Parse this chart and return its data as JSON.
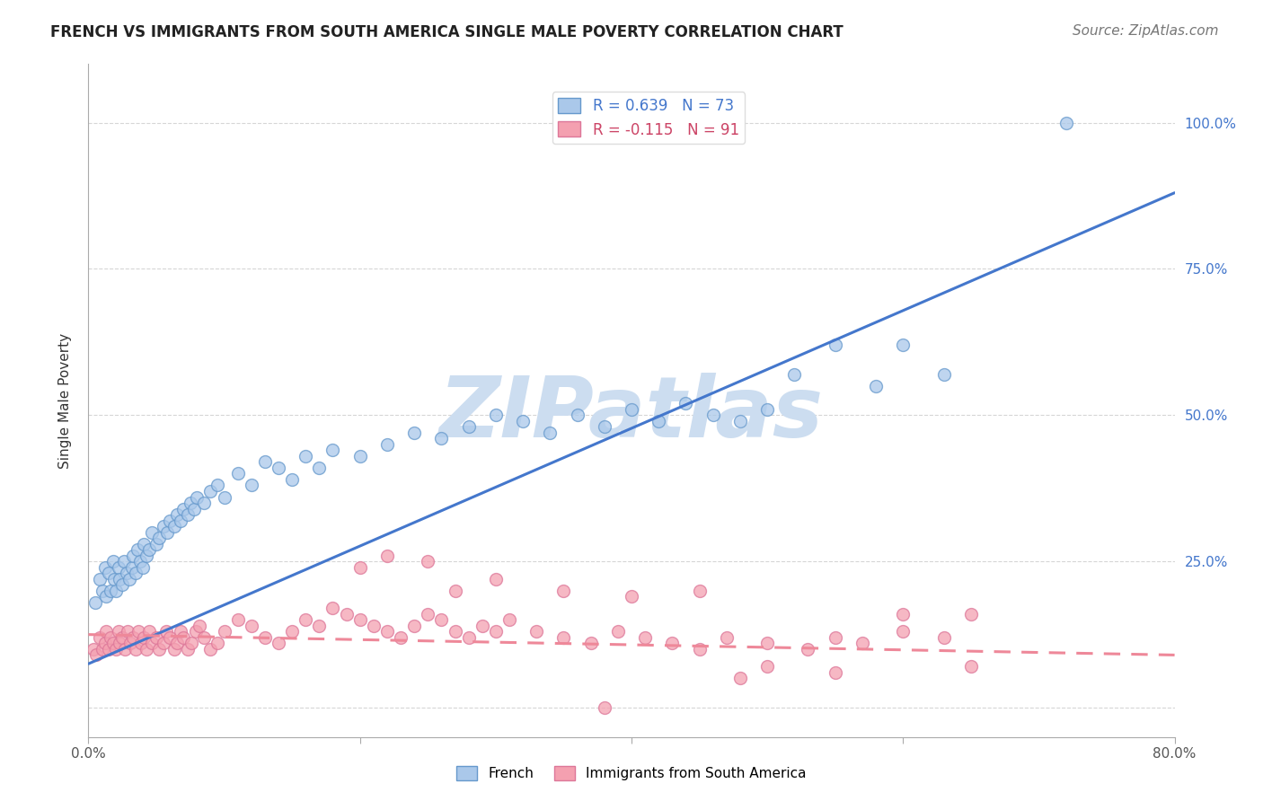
{
  "title": "FRENCH VS IMMIGRANTS FROM SOUTH AMERICA SINGLE MALE POVERTY CORRELATION CHART",
  "source": "Source: ZipAtlas.com",
  "ylabel": "Single Male Poverty",
  "xlim": [
    0.0,
    0.8
  ],
  "ylim": [
    -0.05,
    1.1
  ],
  "grid_color": "#cccccc",
  "background_color": "#ffffff",
  "watermark": "ZIPatlas",
  "watermark_color": "#ccddf0",
  "legend1_label": "R = 0.639   N = 73",
  "legend2_label": "R = -0.115   N = 91",
  "french_color": "#aac8ea",
  "immig_color": "#f4a0b0",
  "french_edge_color": "#6699cc",
  "immig_edge_color": "#dd7799",
  "french_line_color": "#4477cc",
  "immig_line_color": "#ee8899",
  "french_scatter_x": [
    0.005,
    0.008,
    0.01,
    0.012,
    0.013,
    0.015,
    0.016,
    0.018,
    0.019,
    0.02,
    0.022,
    0.023,
    0.025,
    0.026,
    0.028,
    0.03,
    0.032,
    0.033,
    0.035,
    0.036,
    0.038,
    0.04,
    0.041,
    0.043,
    0.045,
    0.047,
    0.05,
    0.052,
    0.055,
    0.058,
    0.06,
    0.063,
    0.065,
    0.068,
    0.07,
    0.073,
    0.075,
    0.078,
    0.08,
    0.085,
    0.09,
    0.095,
    0.1,
    0.11,
    0.12,
    0.13,
    0.14,
    0.15,
    0.16,
    0.17,
    0.18,
    0.2,
    0.22,
    0.24,
    0.26,
    0.28,
    0.3,
    0.32,
    0.34,
    0.36,
    0.38,
    0.4,
    0.42,
    0.44,
    0.46,
    0.48,
    0.5,
    0.52,
    0.55,
    0.58,
    0.6,
    0.63,
    0.72
  ],
  "french_scatter_y": [
    0.18,
    0.22,
    0.2,
    0.24,
    0.19,
    0.23,
    0.2,
    0.25,
    0.22,
    0.2,
    0.24,
    0.22,
    0.21,
    0.25,
    0.23,
    0.22,
    0.24,
    0.26,
    0.23,
    0.27,
    0.25,
    0.24,
    0.28,
    0.26,
    0.27,
    0.3,
    0.28,
    0.29,
    0.31,
    0.3,
    0.32,
    0.31,
    0.33,
    0.32,
    0.34,
    0.33,
    0.35,
    0.34,
    0.36,
    0.35,
    0.37,
    0.38,
    0.36,
    0.4,
    0.38,
    0.42,
    0.41,
    0.39,
    0.43,
    0.41,
    0.44,
    0.43,
    0.45,
    0.47,
    0.46,
    0.48,
    0.5,
    0.49,
    0.47,
    0.5,
    0.48,
    0.51,
    0.49,
    0.52,
    0.5,
    0.49,
    0.51,
    0.57,
    0.62,
    0.55,
    0.62,
    0.57,
    1.0
  ],
  "immig_scatter_x": [
    0.004,
    0.006,
    0.008,
    0.01,
    0.012,
    0.013,
    0.015,
    0.016,
    0.018,
    0.02,
    0.022,
    0.023,
    0.025,
    0.027,
    0.029,
    0.031,
    0.033,
    0.035,
    0.037,
    0.039,
    0.041,
    0.043,
    0.045,
    0.047,
    0.05,
    0.052,
    0.055,
    0.057,
    0.06,
    0.063,
    0.065,
    0.068,
    0.07,
    0.073,
    0.076,
    0.079,
    0.082,
    0.085,
    0.09,
    0.095,
    0.1,
    0.11,
    0.12,
    0.13,
    0.14,
    0.15,
    0.16,
    0.17,
    0.18,
    0.19,
    0.2,
    0.21,
    0.22,
    0.23,
    0.24,
    0.25,
    0.26,
    0.27,
    0.28,
    0.29,
    0.3,
    0.31,
    0.33,
    0.35,
    0.37,
    0.39,
    0.41,
    0.43,
    0.45,
    0.47,
    0.5,
    0.53,
    0.55,
    0.57,
    0.6,
    0.63,
    0.65,
    0.27,
    0.3,
    0.35,
    0.4,
    0.45,
    0.48,
    0.25,
    0.22,
    0.2,
    0.5,
    0.55,
    0.6,
    0.65,
    0.38
  ],
  "immig_scatter_y": [
    0.1,
    0.09,
    0.12,
    0.1,
    0.11,
    0.13,
    0.1,
    0.12,
    0.11,
    0.1,
    0.13,
    0.11,
    0.12,
    0.1,
    0.13,
    0.11,
    0.12,
    0.1,
    0.13,
    0.11,
    0.12,
    0.1,
    0.13,
    0.11,
    0.12,
    0.1,
    0.11,
    0.13,
    0.12,
    0.1,
    0.11,
    0.13,
    0.12,
    0.1,
    0.11,
    0.13,
    0.14,
    0.12,
    0.1,
    0.11,
    0.13,
    0.15,
    0.14,
    0.12,
    0.11,
    0.13,
    0.15,
    0.14,
    0.17,
    0.16,
    0.15,
    0.14,
    0.13,
    0.12,
    0.14,
    0.16,
    0.15,
    0.13,
    0.12,
    0.14,
    0.13,
    0.15,
    0.13,
    0.12,
    0.11,
    0.13,
    0.12,
    0.11,
    0.1,
    0.12,
    0.11,
    0.1,
    0.12,
    0.11,
    0.13,
    0.12,
    0.16,
    0.2,
    0.22,
    0.2,
    0.19,
    0.2,
    0.05,
    0.25,
    0.26,
    0.24,
    0.07,
    0.06,
    0.16,
    0.07,
    0.0
  ],
  "french_line_x": [
    0.0,
    0.8
  ],
  "french_line_y": [
    0.075,
    0.88
  ],
  "immig_line_x": [
    0.0,
    0.8
  ],
  "immig_line_y": [
    0.125,
    0.09
  ],
  "title_fontsize": 12,
  "axis_label_fontsize": 11,
  "tick_fontsize": 11,
  "legend_fontsize": 12,
  "source_fontsize": 11
}
